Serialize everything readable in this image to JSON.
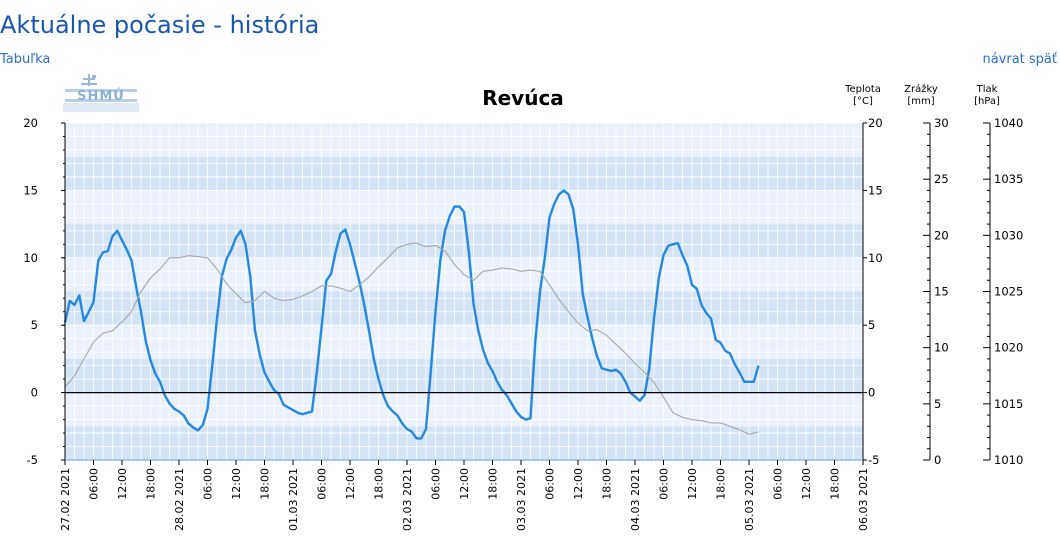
{
  "page": {
    "title": "Aktuálne počasie - história",
    "table_link": "Tabuľka",
    "back_link": "návrat späť"
  },
  "logo_text": "SHMÚ",
  "chart_data": {
    "type": "line",
    "title": "Revúca",
    "x_ticks": [
      "27.02 2021",
      "06:00",
      "12:00",
      "18:00",
      "28.02 2021",
      "06:00",
      "12:00",
      "18:00",
      "01.03 2021",
      "06:00",
      "12:00",
      "18:00",
      "02.03 2021",
      "06:00",
      "12:00",
      "18:00",
      "03.03 2021",
      "06:00",
      "12:00",
      "18:00",
      "04.03 2021",
      "06:00",
      "12:00",
      "18:00",
      "05.03 2021",
      "06:00",
      "12:00",
      "18:00",
      "06.03 2021"
    ],
    "x_range_hours": [
      0,
      168
    ],
    "temperature_axis": {
      "label": [
        "Teplota",
        "[°C]"
      ],
      "range": [
        -5,
        20
      ],
      "ticks": [
        20,
        15,
        10,
        5,
        0,
        -5
      ]
    },
    "precip_axis": {
      "label": [
        "Zrážky",
        "[mm]"
      ],
      "range": [
        0,
        30
      ],
      "ticks": [
        30,
        25,
        20,
        15,
        10,
        5,
        0
      ]
    },
    "pressure_axis": {
      "label": [
        "Tlak",
        "[hPa]"
      ],
      "range": [
        1010,
        1040
      ],
      "ticks": [
        1040,
        1035,
        1030,
        1025,
        1020,
        1015,
        1010
      ]
    },
    "series": [
      {
        "name": "Teplota",
        "unit": "°C",
        "color": "#2288e0",
        "points": [
          [
            0,
            5.2
          ],
          [
            1,
            6.8
          ],
          [
            2,
            6.5
          ],
          [
            3,
            7.2
          ],
          [
            4,
            5.3
          ],
          [
            5,
            6.0
          ],
          [
            6,
            6.7
          ],
          [
            7,
            9.8
          ],
          [
            8,
            10.4
          ],
          [
            9,
            10.5
          ],
          [
            10,
            11.6
          ],
          [
            11,
            12.0
          ],
          [
            12,
            11.3
          ],
          [
            13,
            10.6
          ],
          [
            14,
            9.8
          ],
          [
            15,
            7.8
          ],
          [
            16,
            6.0
          ],
          [
            17,
            3.8
          ],
          [
            18,
            2.4
          ],
          [
            19,
            1.4
          ],
          [
            20,
            0.8
          ],
          [
            21,
            -0.2
          ],
          [
            22,
            -0.8
          ],
          [
            23,
            -1.2
          ],
          [
            24,
            -1.4
          ],
          [
            25,
            -1.7
          ],
          [
            26,
            -2.3
          ],
          [
            27,
            -2.6
          ],
          [
            28,
            -2.8
          ],
          [
            29,
            -2.4
          ],
          [
            30,
            -1.2
          ],
          [
            31,
            2.0
          ],
          [
            32,
            5.5
          ],
          [
            33,
            8.6
          ],
          [
            34,
            9.9
          ],
          [
            35,
            10.6
          ],
          [
            36,
            11.5
          ],
          [
            37,
            12.0
          ],
          [
            38,
            11.0
          ],
          [
            39,
            8.6
          ],
          [
            40,
            4.6
          ],
          [
            41,
            2.8
          ],
          [
            42,
            1.5
          ],
          [
            43,
            0.8
          ],
          [
            44,
            0.2
          ],
          [
            45,
            -0.1
          ],
          [
            46,
            -0.9
          ],
          [
            47,
            -1.1
          ],
          [
            48,
            -1.3
          ],
          [
            49,
            -1.5
          ],
          [
            50,
            -1.6
          ],
          [
            51,
            -1.5
          ],
          [
            52,
            -1.4
          ],
          [
            53,
            1.5
          ],
          [
            54,
            4.8
          ],
          [
            55,
            8.3
          ],
          [
            56,
            8.8
          ],
          [
            57,
            10.5
          ],
          [
            58,
            11.8
          ],
          [
            59,
            12.1
          ],
          [
            60,
            11.0
          ],
          [
            61,
            9.6
          ],
          [
            62,
            8.2
          ],
          [
            63,
            6.5
          ],
          [
            64,
            4.6
          ],
          [
            65,
            2.5
          ],
          [
            66,
            1.0
          ],
          [
            67,
            -0.2
          ],
          [
            68,
            -1.0
          ],
          [
            69,
            -1.4
          ],
          [
            70,
            -1.7
          ],
          [
            71,
            -2.3
          ],
          [
            72,
            -2.7
          ],
          [
            73,
            -2.9
          ],
          [
            74,
            -3.4
          ],
          [
            75,
            -3.4
          ],
          [
            76,
            -2.7
          ],
          [
            77,
            1.6
          ],
          [
            78,
            6.0
          ],
          [
            79,
            9.8
          ],
          [
            80,
            12.0
          ],
          [
            81,
            13.1
          ],
          [
            82,
            13.8
          ],
          [
            83,
            13.8
          ],
          [
            84,
            13.4
          ],
          [
            85,
            10.5
          ],
          [
            86,
            6.6
          ],
          [
            87,
            4.6
          ],
          [
            88,
            3.2
          ],
          [
            89,
            2.2
          ],
          [
            90,
            1.6
          ],
          [
            91,
            0.8
          ],
          [
            92,
            0.2
          ],
          [
            93,
            -0.2
          ],
          [
            94,
            -0.8
          ],
          [
            95,
            -1.4
          ],
          [
            96,
            -1.8
          ],
          [
            97,
            -2.0
          ],
          [
            98,
            -1.9
          ],
          [
            99,
            3.8
          ],
          [
            100,
            7.5
          ],
          [
            101,
            10.0
          ],
          [
            102,
            13.0
          ],
          [
            103,
            14.0
          ],
          [
            104,
            14.7
          ],
          [
            105,
            15.0
          ],
          [
            106,
            14.7
          ],
          [
            107,
            13.6
          ],
          [
            108,
            11.0
          ],
          [
            109,
            7.3
          ],
          [
            110,
            5.6
          ],
          [
            111,
            4.0
          ],
          [
            112,
            2.7
          ],
          [
            113,
            1.8
          ],
          [
            114,
            1.7
          ],
          [
            115,
            1.6
          ],
          [
            116,
            1.7
          ],
          [
            117,
            1.4
          ],
          [
            118,
            0.8
          ],
          [
            119,
            0.0
          ],
          [
            120,
            -0.3
          ],
          [
            121,
            -0.6
          ],
          [
            122,
            -0.2
          ],
          [
            123,
            1.8
          ],
          [
            124,
            5.5
          ],
          [
            125,
            8.5
          ],
          [
            126,
            10.2
          ],
          [
            127,
            10.9
          ],
          [
            128,
            11.0
          ],
          [
            129,
            11.1
          ],
          [
            130,
            10.2
          ],
          [
            131,
            9.4
          ],
          [
            132,
            8.0
          ],
          [
            133,
            7.7
          ],
          [
            134,
            6.5
          ],
          [
            135,
            5.9
          ],
          [
            136,
            5.5
          ],
          [
            137,
            3.9
          ],
          [
            138,
            3.7
          ],
          [
            139,
            3.1
          ],
          [
            140,
            2.9
          ],
          [
            141,
            2.1
          ],
          [
            142,
            1.5
          ],
          [
            143,
            0.8
          ],
          [
            144,
            0.8
          ],
          [
            145,
            0.8
          ],
          [
            146,
            2.0
          ]
        ]
      },
      {
        "name": "Tlak",
        "unit": "hPa",
        "color": "#a8a8a8",
        "points": [
          [
            0,
            1016.5
          ],
          [
            2,
            1017.5
          ],
          [
            4,
            1019.0
          ],
          [
            6,
            1020.5
          ],
          [
            8,
            1021.3
          ],
          [
            10,
            1021.5
          ],
          [
            12,
            1022.3
          ],
          [
            14,
            1023.2
          ],
          [
            16,
            1025.0
          ],
          [
            18,
            1026.2
          ],
          [
            20,
            1027.0
          ],
          [
            22,
            1028.0
          ],
          [
            24,
            1028.0
          ],
          [
            26,
            1028.2
          ],
          [
            28,
            1028.1
          ],
          [
            30,
            1028.0
          ],
          [
            32,
            1027.0
          ],
          [
            34,
            1025.7
          ],
          [
            36,
            1024.8
          ],
          [
            38,
            1024.0
          ],
          [
            40,
            1024.2
          ],
          [
            42,
            1025.0
          ],
          [
            44,
            1024.4
          ],
          [
            46,
            1024.2
          ],
          [
            48,
            1024.3
          ],
          [
            50,
            1024.6
          ],
          [
            52,
            1025.0
          ],
          [
            54,
            1025.5
          ],
          [
            56,
            1025.5
          ],
          [
            58,
            1025.3
          ],
          [
            60,
            1025.0
          ],
          [
            62,
            1025.6
          ],
          [
            64,
            1026.3
          ],
          [
            66,
            1027.2
          ],
          [
            68,
            1028.0
          ],
          [
            70,
            1028.9
          ],
          [
            72,
            1029.2
          ],
          [
            74,
            1029.3
          ],
          [
            76,
            1029.0
          ],
          [
            78,
            1029.1
          ],
          [
            80,
            1028.6
          ],
          [
            82,
            1027.4
          ],
          [
            84,
            1026.5
          ],
          [
            86,
            1026.0
          ],
          [
            88,
            1026.8
          ],
          [
            90,
            1026.9
          ],
          [
            92,
            1027.1
          ],
          [
            94,
            1027.0
          ],
          [
            96,
            1026.8
          ],
          [
            98,
            1026.9
          ],
          [
            100,
            1026.8
          ],
          [
            102,
            1025.6
          ],
          [
            104,
            1024.3
          ],
          [
            106,
            1023.2
          ],
          [
            108,
            1022.2
          ],
          [
            110,
            1021.5
          ],
          [
            112,
            1021.6
          ],
          [
            114,
            1021.1
          ],
          [
            116,
            1020.3
          ],
          [
            118,
            1019.5
          ],
          [
            120,
            1018.6
          ],
          [
            122,
            1017.8
          ],
          [
            124,
            1016.9
          ],
          [
            126,
            1015.6
          ],
          [
            128,
            1014.2
          ],
          [
            130,
            1013.8
          ],
          [
            132,
            1013.6
          ],
          [
            134,
            1013.5
          ],
          [
            136,
            1013.3
          ],
          [
            138,
            1013.3
          ],
          [
            140,
            1013.0
          ],
          [
            142,
            1012.7
          ],
          [
            144,
            1012.3
          ],
          [
            146,
            1012.5
          ]
        ]
      }
    ],
    "zero_line": 0,
    "grid": true
  },
  "colors": {
    "title": "#1a56b0",
    "link": "#2a6fd6",
    "band_dark": "#d5e4f5",
    "band_light": "#eaf1fb",
    "grid": "#ffffff",
    "axis": "#000000"
  }
}
